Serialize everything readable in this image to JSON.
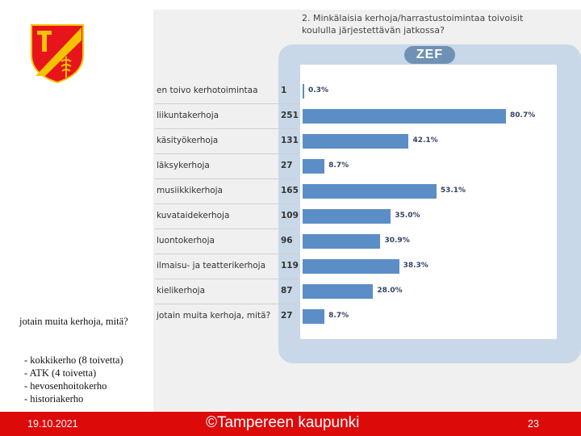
{
  "question": {
    "line1": "2. Minkälaisia kerhoja/harrastustoimintaa toivoisit",
    "line2": "koululla järjestettävän jatkossa?"
  },
  "badge": "ZEF",
  "chart_data": {
    "type": "bar",
    "orientation": "horizontal",
    "title": "2. Minkälaisia kerhoja/harrastustoimintaa toivoisit koululla järjestettävän jatkossa?",
    "categories": [
      "en toivo kerhotoimintaa",
      "liikuntakerhoja",
      "käsityökerhoja",
      "läksykerhoja",
      "musiikkikerhoja",
      "kuvataidekerhoja",
      "luontokerhoja",
      "ilmaisu- ja teatterikerhoja",
      "kielikerhoja",
      "jotain muita kerhoja, mitä?"
    ],
    "counts": [
      "1",
      "251",
      "131",
      "27",
      "165",
      "109",
      "96",
      "119",
      "87",
      "27"
    ],
    "values": [
      0.3,
      80.7,
      42.1,
      8.7,
      53.1,
      35.0,
      30.9,
      38.3,
      28.0,
      8.7
    ],
    "value_labels": [
      "0.3%",
      "80.7%",
      "42.1%",
      "8.7%",
      "53.1%",
      "35.0%",
      "30.9%",
      "38.3%",
      "28.0%",
      "8.7%"
    ],
    "unit": "%"
  },
  "notes": {
    "other_heading": "jotain muita kerhoja, mitä?",
    "items": [
      "- kokkikerho (8 toivetta)",
      "- ATK  (4 toivetta)",
      "- hevosenhoitokerho",
      "- historiakerho"
    ]
  },
  "footer": {
    "date": "19.10.2021",
    "copyright": "©Tampereen kaupunki",
    "page": "23"
  },
  "colors": {
    "bar": "#5b8ec6",
    "footer": "#dd0a0a",
    "crest_red": "#e8141c",
    "crest_gold": "#f5c400"
  }
}
